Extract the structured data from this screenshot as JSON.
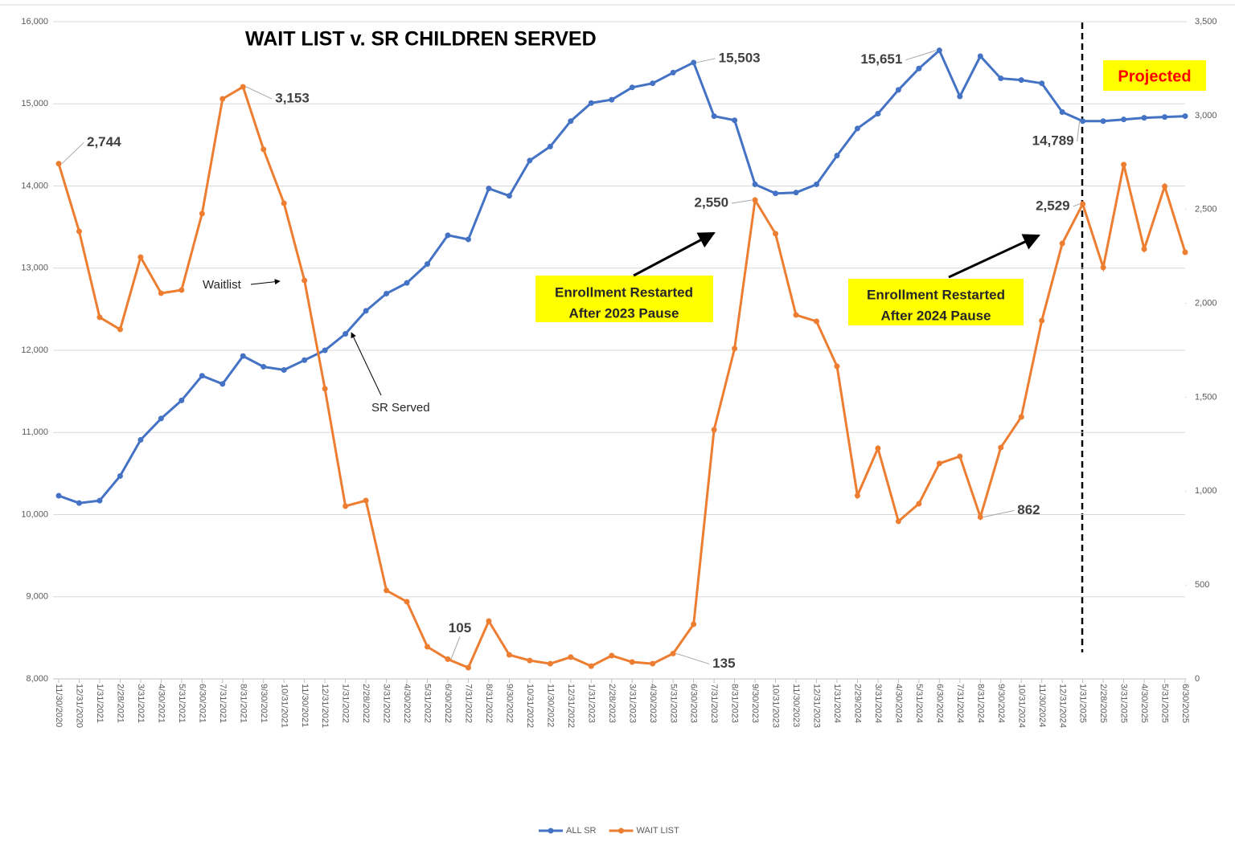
{
  "chart_data": {
    "type": "line",
    "title": "WAIT LIST v. SR CHILDREN SERVED",
    "x": [
      "11/30/2020",
      "12/31/2020",
      "1/31/2021",
      "2/28/2021",
      "3/31/2021",
      "4/30/2021",
      "5/31/2021",
      "6/30/2021",
      "7/31/2021",
      "8/31/2021",
      "9/30/2021",
      "10/31/2021",
      "11/30/2021",
      "12/31/2021",
      "1/31/2022",
      "2/28/2022",
      "3/31/2022",
      "4/30/2022",
      "5/31/2022",
      "6/30/2022",
      "7/31/2022",
      "8/31/2022",
      "9/30/2022",
      "10/31/2022",
      "11/30/2022",
      "12/31/2022",
      "1/31/2023",
      "2/28/2023",
      "3/31/2023",
      "4/30/2023",
      "5/31/2023",
      "6/30/2023",
      "7/31/2023",
      "8/31/2023",
      "9/30/2023",
      "10/31/2023",
      "11/30/2023",
      "12/31/2023",
      "1/31/2024",
      "2/29/2024",
      "3/31/2024",
      "4/30/2024",
      "5/31/2024",
      "6/30/2024",
      "7/31/2024",
      "8/31/2024",
      "9/30/2024",
      "10/31/2024",
      "11/30/2024",
      "12/31/2024",
      "1/31/2025",
      "2/28/2025",
      "3/31/2025",
      "4/30/2025",
      "5/31/2025",
      "6/30/2025"
    ],
    "series": [
      {
        "name": "ALL SR",
        "color": "#4472c4",
        "axis": "y",
        "values": [
          10230,
          10140,
          10170,
          10470,
          10910,
          11170,
          11390,
          11690,
          11590,
          11930,
          11800,
          11760,
          11880,
          12000,
          12200,
          12480,
          12690,
          12820,
          13050,
          13400,
          13350,
          13970,
          13880,
          14310,
          14480,
          14790,
          15010,
          15050,
          15200,
          15250,
          15380,
          15503,
          14850,
          14800,
          14020,
          13910,
          13920,
          14020,
          14370,
          14700,
          14880,
          15170,
          15430,
          15651,
          15090,
          15580,
          15310,
          15290,
          15250,
          14900,
          14789,
          14790,
          14810,
          14830,
          14840,
          14850
        ],
        "value_labels": [
          null,
          null,
          null,
          null,
          null,
          null,
          null,
          null,
          null,
          null,
          null,
          null,
          null,
          null,
          null,
          null,
          null,
          null,
          null,
          null,
          null,
          null,
          null,
          null,
          null,
          null,
          null,
          null,
          null,
          null,
          null,
          "15,503",
          null,
          null,
          null,
          null,
          null,
          null,
          null,
          null,
          null,
          null,
          null,
          "15,651",
          null,
          null,
          null,
          null,
          null,
          null,
          "14,789",
          null,
          null,
          null,
          null,
          null
        ]
      },
      {
        "name": "WAIT LIST",
        "color": "#ed7d31",
        "axis": "y2",
        "values": [
          2744,
          2383,
          1926,
          1861,
          2246,
          2054,
          2071,
          2478,
          3089,
          3153,
          2820,
          2533,
          2122,
          1545,
          920,
          950,
          471,
          411,
          171,
          105,
          60,
          308,
          128,
          98,
          81,
          116,
          68,
          124,
          90,
          81,
          135,
          291,
          1327,
          1759,
          2550,
          2371,
          1938,
          1904,
          1665,
          976,
          1228,
          839,
          933,
          1147,
          1185,
          862,
          1232,
          1395,
          1908,
          2319,
          2529,
          2191,
          2739,
          2289,
          2623,
          2272
        ],
        "value_labels": [
          "2,744",
          null,
          null,
          null,
          null,
          null,
          null,
          null,
          null,
          "3,153",
          null,
          null,
          null,
          null,
          null,
          null,
          null,
          null,
          null,
          "105",
          null,
          null,
          null,
          null,
          null,
          null,
          null,
          null,
          null,
          null,
          "135",
          null,
          null,
          null,
          "2,550",
          null,
          null,
          null,
          null,
          null,
          null,
          null,
          null,
          null,
          null,
          "862",
          null,
          null,
          null,
          null,
          "2,529",
          null,
          null,
          null,
          null,
          null
        ]
      }
    ],
    "ylim": [
      8000,
      16000
    ],
    "yticks": [
      {
        "value": 8000,
        "label": "8,000"
      },
      {
        "value": 9000,
        "label": "9,000"
      },
      {
        "value": 10000,
        "label": "10,000"
      },
      {
        "value": 11000,
        "label": "11,000"
      },
      {
        "value": 12000,
        "label": "12,000"
      },
      {
        "value": 13000,
        "label": "13,000"
      },
      {
        "value": 14000,
        "label": "14,000"
      },
      {
        "value": 15000,
        "label": "15,000"
      },
      {
        "value": 16000,
        "label": "16,000"
      }
    ],
    "y2lim": [
      0,
      3500
    ],
    "y2ticks": [
      0,
      500,
      {
        "value": 1000,
        "label": "1,000"
      },
      {
        "value": 1500,
        "label": "1,500"
      },
      {
        "value": 2000,
        "label": "2,000"
      },
      {
        "value": 2500,
        "label": "2,500"
      },
      {
        "value": 3000,
        "label": "3,000"
      },
      {
        "value": 3500,
        "label": "3,500"
      }
    ],
    "grid": true,
    "legend": "bottom",
    "annotations": [
      {
        "text": "Waitlist"
      },
      {
        "text": "SR Served"
      },
      {
        "lines": [
          "Enrollment Restarted",
          "After 2023 Pause"
        ]
      },
      {
        "lines": [
          "Enrollment Restarted",
          "After 2024 Pause"
        ]
      },
      {
        "text": "Projected"
      }
    ]
  }
}
